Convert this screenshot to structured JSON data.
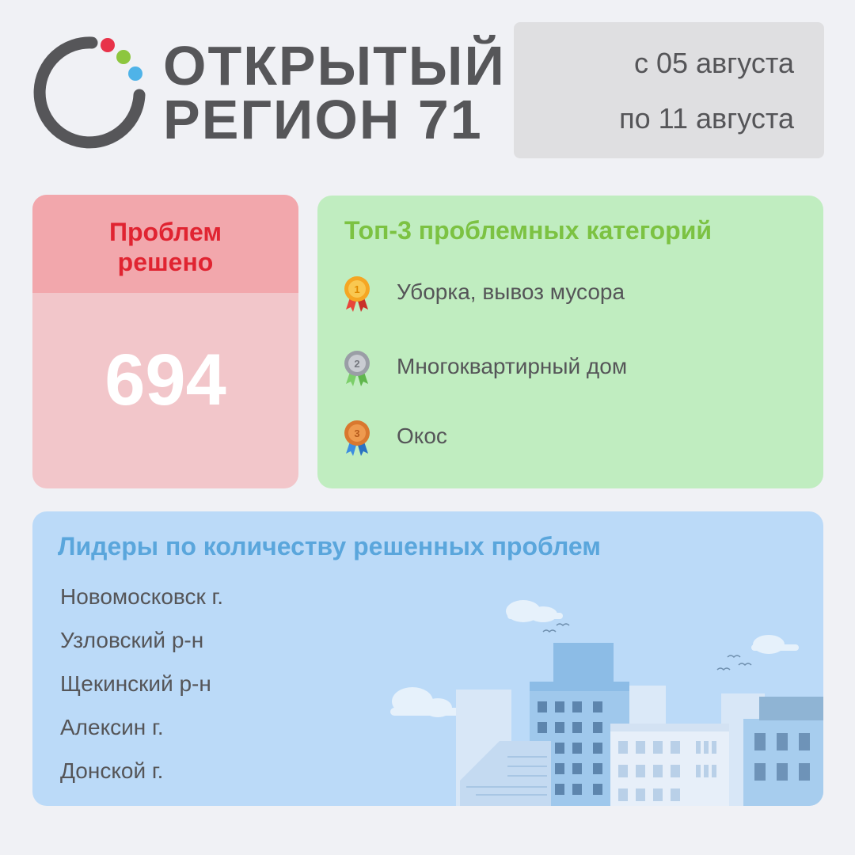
{
  "brand": {
    "line1": "ОТКРЫТЫЙ",
    "line2": "РЕГИОН  71"
  },
  "period": {
    "from": "с 05 августа",
    "to": "по 11 августа"
  },
  "solved": {
    "title_line1": "Проблем",
    "title_line2": "решено",
    "count": "694"
  },
  "top3": {
    "title": "Топ-3 проблемных категорий",
    "items": [
      {
        "rank": "1",
        "label": "Уборка, вывоз мусора",
        "medal": "gold-medal-icon"
      },
      {
        "rank": "2",
        "label": "Многоквартирный дом",
        "medal": "silver-medal-icon"
      },
      {
        "rank": "3",
        "label": "Окос",
        "medal": "bronze-medal-icon"
      }
    ]
  },
  "leaders": {
    "title": "Лидеры по количеству решенных проблем",
    "items": [
      "Новомосковск г.",
      "Узловский р-н",
      "Щекинский р-н",
      "Алексин г.",
      "Донской г."
    ]
  },
  "colors": {
    "background": "#f0f1f5",
    "brand_gray": "#565659",
    "dot_red": "#e8334a",
    "dot_green": "#8dc63f",
    "dot_blue": "#4fb3e8",
    "solved_accent": "#e02431",
    "top3_accent": "#7cc242",
    "leaders_accent": "#5aa6dc"
  }
}
